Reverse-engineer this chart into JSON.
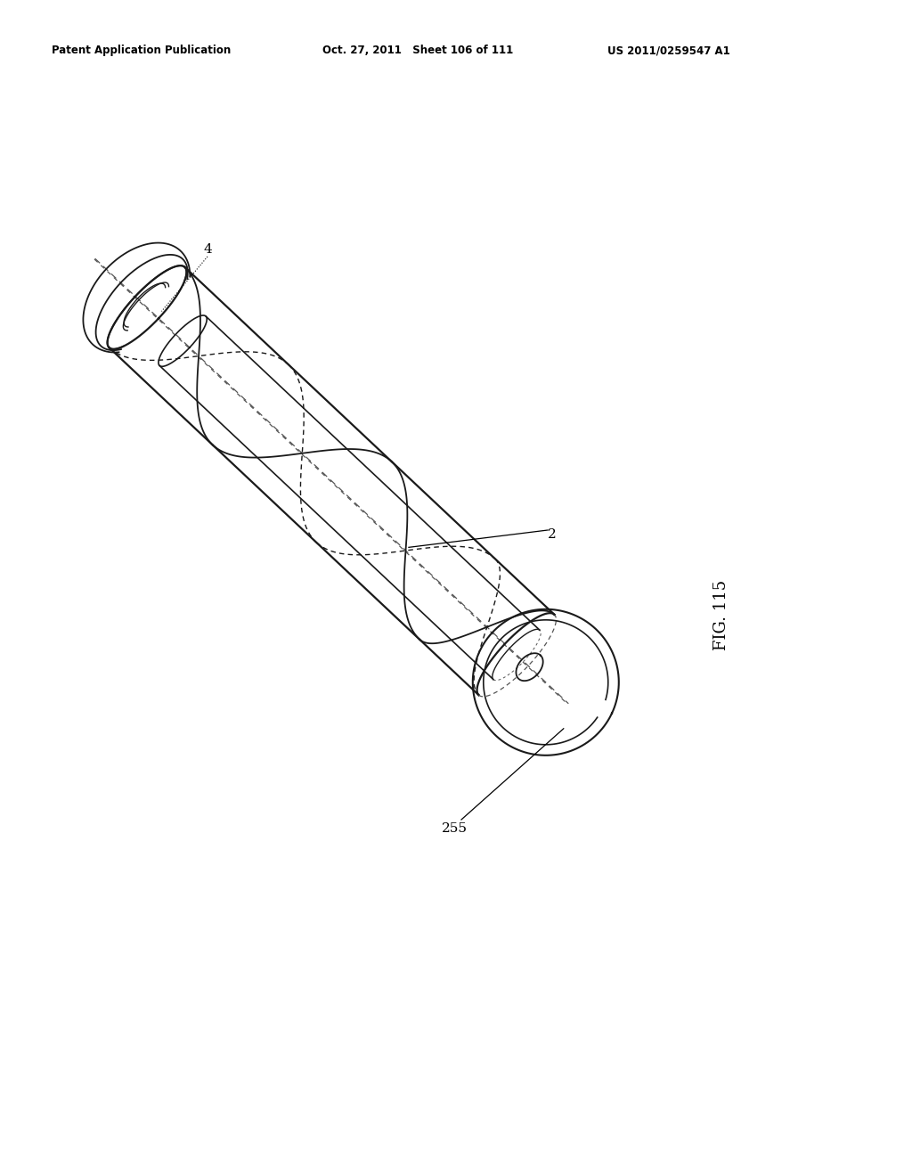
{
  "background_color": "#ffffff",
  "header_left": "Patent Application Publication",
  "header_center": "Oct. 27, 2011   Sheet 106 of 111",
  "header_right": "US 2011/0259547 A1",
  "fig_label": "FIG. 115",
  "label_4": "4",
  "label_2": "2",
  "label_255": "255",
  "line_color": "#1a1a1a",
  "dashed_color": "#555555"
}
